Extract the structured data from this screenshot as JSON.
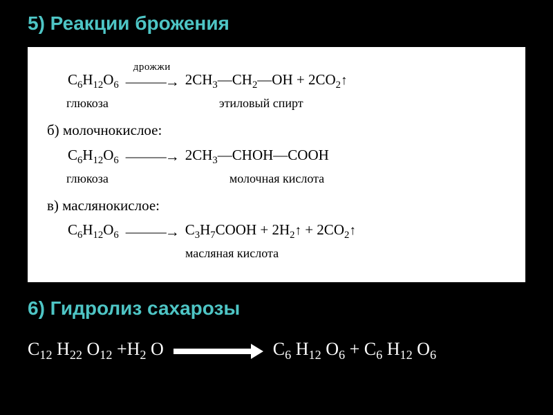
{
  "title1": "5) Реакции брожения",
  "title2": "6) Гидролиз сахарозы",
  "box": {
    "line1_left": "C₆H₁₂O₆",
    "line1_arrow_label": "дрожжи",
    "line1_right": "2CH₃—CH₂—OH + 2CO₂↑",
    "label1_left": "глюкоза",
    "label1_right": "этиловый спирт",
    "heading_b": "б) молочнокислое:",
    "line2_left": "C₆H₁₂O₆",
    "line2_right": "2CH₃—CHOH—COOH",
    "label2_left": "глюкоза",
    "label2_right": "молочная кислота",
    "heading_c": "в) маслянокислое:",
    "line3_left": "C₆H₁₂O₆",
    "line3_right": "C₃H₇COOH + 2H₂↑ + 2CO₂↑",
    "label3_right": "масляная кислота"
  },
  "bottom_left": "С₁₂ Н₂₂ О₁₂ +Н₂ О",
  "bottom_right": "С₆ Н₁₂ О₆ + С₆ Н₁₂ О₆",
  "colors": {
    "background": "#000000",
    "title": "#4ec5c5",
    "box_bg": "#ffffff",
    "box_text": "#000000",
    "bottom_text": "#ffffff"
  },
  "fonts": {
    "title_size": 28,
    "box_size": 21,
    "sub_label_size": 18,
    "bottom_size": 26
  }
}
